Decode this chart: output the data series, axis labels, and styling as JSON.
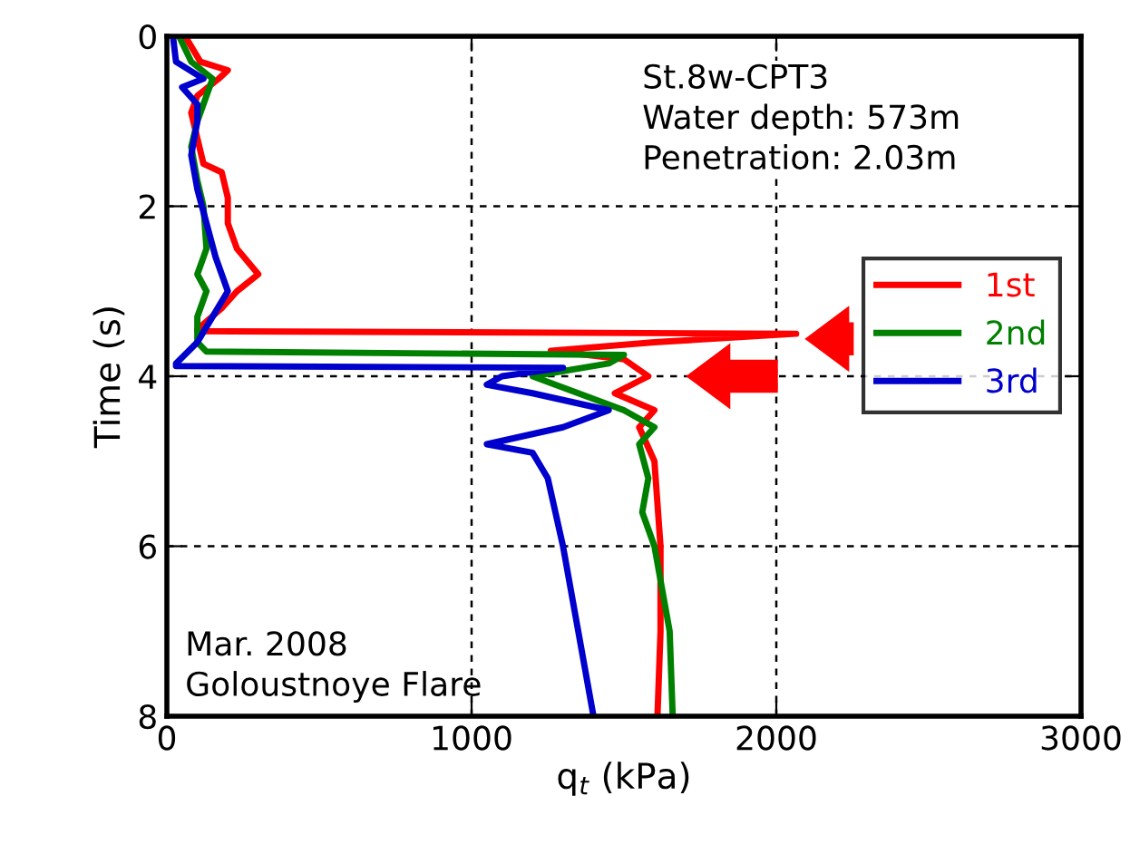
{
  "chart_data": {
    "type": "line",
    "xlabel": "q$_{t}$ (kPa)",
    "ylabel": "Time (s)",
    "xlim": [
      0,
      3000
    ],
    "xticks": [
      0,
      1000,
      2000,
      3000
    ],
    "ylim": [
      8,
      0
    ],
    "yticks": [
      0,
      2,
      4,
      6,
      8
    ],
    "grid": true,
    "legend": "center right",
    "marker": "none",
    "line_style": "solid",
    "annotations": [
      "St.8w-CPT3\nWater depth: 573m\nPenetration: 2.03m",
      "Mar. 2008\nGoloustnoye Flare"
    ],
    "series": [
      {
        "name": "1st",
        "color": "#ff0000",
        "x": [
          60,
          110,
          200,
          170,
          100,
          80,
          100,
          120,
          180,
          200,
          200,
          230,
          300,
          230,
          180,
          100,
          100,
          2065,
          1600,
          1260,
          1500,
          1580,
          1470,
          1600,
          1550,
          1600,
          1620,
          1620,
          1610
        ],
        "values": [
          0,
          0.3,
          0.4,
          0.5,
          0.7,
          0.9,
          1.2,
          1.5,
          1.6,
          1.9,
          2.2,
          2.5,
          2.8,
          3.0,
          3.2,
          3.45,
          3.47,
          3.5,
          3.6,
          3.7,
          3.8,
          4.0,
          4.2,
          4.4,
          4.6,
          5,
          6,
          7,
          8
        ]
      },
      {
        "name": "2nd",
        "color": "#008000",
        "x": [
          40,
          80,
          150,
          120,
          100,
          80,
          100,
          120,
          130,
          100,
          130,
          100,
          100,
          130,
          1500,
          1450,
          1200,
          1350,
          1500,
          1600,
          1550,
          1580,
          1560,
          1600,
          1650,
          1660
        ],
        "values": [
          0,
          0.3,
          0.5,
          0.8,
          1,
          1.3,
          1.7,
          2,
          2.5,
          2.8,
          3.0,
          3.3,
          3.6,
          3.71,
          3.75,
          3.85,
          4.0,
          4.2,
          4.4,
          4.6,
          4.8,
          5.2,
          5.6,
          6,
          7,
          8
        ]
      },
      {
        "name": "3rd",
        "color": "#0000cc",
        "x": [
          20,
          30,
          120,
          50,
          100,
          100,
          80,
          100,
          130,
          160,
          200,
          150,
          100,
          30,
          30,
          1300,
          1100,
          1050,
          1200,
          1450,
          1300,
          1050,
          1200,
          1250,
          1300,
          1350,
          1400
        ],
        "values": [
          0,
          0.3,
          0.5,
          0.6,
          0.8,
          1,
          1.4,
          1.8,
          2.2,
          2.6,
          3.0,
          3.3,
          3.6,
          3.85,
          3.88,
          3.9,
          4.0,
          4.1,
          4.2,
          4.4,
          4.6,
          4.8,
          4.9,
          5.2,
          6,
          7,
          8
        ]
      }
    ]
  }
}
